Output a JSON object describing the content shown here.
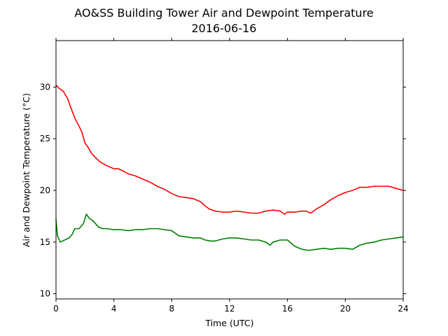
{
  "chart_data": {
    "type": "line",
    "title": "AO&SS Building Tower Air and Dewpoint Temperature",
    "subtitle": "2016-06-16",
    "xlabel": "Time (UTC)",
    "ylabel": "Air and Dewpoint Temperature (°C)",
    "xlim": [
      0,
      24
    ],
    "ylim": [
      9.5,
      34.5
    ],
    "xticks": [
      0,
      4,
      8,
      12,
      16,
      20,
      24
    ],
    "yticks": [
      10,
      15,
      20,
      25,
      30
    ],
    "grid": false,
    "legend": false,
    "series": [
      {
        "color": "#ff0000",
        "x": [
          0,
          0.2,
          0.5,
          0.8,
          1.0,
          1.3,
          1.6,
          1.8,
          2.0,
          2.2,
          2.5,
          3.0,
          3.5,
          4.0,
          4.3,
          4.6,
          5.0,
          5.5,
          6.0,
          6.5,
          7.0,
          7.5,
          8.0,
          8.5,
          9.0,
          9.5,
          10.0,
          10.3,
          10.6,
          11.0,
          11.5,
          12.0,
          12.5,
          13.0,
          13.5,
          14.0,
          14.5,
          15.0,
          15.5,
          15.8,
          16.0,
          16.5,
          17.0,
          17.3,
          17.6,
          18.0,
          18.5,
          19.0,
          19.5,
          20.0,
          20.5,
          21.0,
          21.5,
          22.0,
          22.5,
          23.0,
          23.5,
          24.0
        ],
        "y": [
          30.2,
          29.9,
          29.6,
          28.9,
          28.1,
          27.0,
          26.2,
          25.6,
          24.6,
          24.2,
          23.5,
          22.8,
          22.4,
          22.1,
          22.1,
          21.9,
          21.6,
          21.4,
          21.1,
          20.8,
          20.4,
          20.1,
          19.7,
          19.4,
          19.3,
          19.2,
          18.9,
          18.5,
          18.2,
          18.0,
          17.9,
          17.9,
          18.0,
          17.9,
          17.8,
          17.8,
          18.0,
          18.1,
          18.0,
          17.7,
          17.9,
          17.9,
          18.0,
          18.0,
          17.8,
          18.2,
          18.6,
          19.1,
          19.5,
          19.8,
          20.0,
          20.3,
          20.3,
          20.4,
          20.4,
          20.4,
          20.2,
          20.0
        ]
      },
      {
        "color": "#008000",
        "x": [
          0,
          0.1,
          0.3,
          0.6,
          0.9,
          1.1,
          1.3,
          1.6,
          1.9,
          2.1,
          2.3,
          2.6,
          2.9,
          3.2,
          3.5,
          4.0,
          4.5,
          5.0,
          5.5,
          6.0,
          6.5,
          7.0,
          7.5,
          8.0,
          8.5,
          9.0,
          9.5,
          10.0,
          10.3,
          10.7,
          11.0,
          11.5,
          12.0,
          12.5,
          13.0,
          13.5,
          14.0,
          14.5,
          14.8,
          15.0,
          15.5,
          16.0,
          16.5,
          17.0,
          17.5,
          18.0,
          18.5,
          19.0,
          19.5,
          20.0,
          20.5,
          21.0,
          21.5,
          22.0,
          22.5,
          23.0,
          23.5,
          24.0
        ],
        "y": [
          17.2,
          15.6,
          15.0,
          15.2,
          15.4,
          15.7,
          16.3,
          16.3,
          16.8,
          17.7,
          17.3,
          17.0,
          16.5,
          16.3,
          16.3,
          16.2,
          16.2,
          16.1,
          16.2,
          16.2,
          16.3,
          16.3,
          16.2,
          16.1,
          15.6,
          15.5,
          15.4,
          15.4,
          15.2,
          15.1,
          15.1,
          15.3,
          15.4,
          15.4,
          15.3,
          15.2,
          15.2,
          15.0,
          14.7,
          15.0,
          15.2,
          15.2,
          14.6,
          14.3,
          14.2,
          14.3,
          14.4,
          14.3,
          14.4,
          14.4,
          14.3,
          14.7,
          14.9,
          15.0,
          15.2,
          15.3,
          15.4,
          15.5
        ]
      }
    ]
  }
}
